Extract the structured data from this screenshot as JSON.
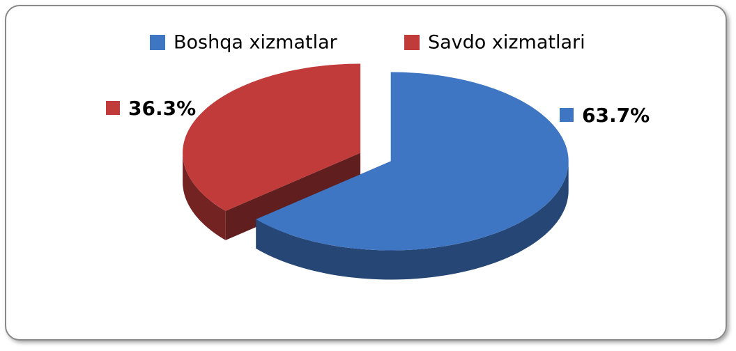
{
  "chart_data": {
    "type": "pie",
    "categories": [
      "Boshqa xizmatlar",
      "Savdo xizmatlari"
    ],
    "values": [
      63.7,
      36.3
    ],
    "value_labels": [
      "63.7%",
      "36.3%"
    ],
    "colors": [
      "#3f76c4",
      "#c23b3b"
    ],
    "legend": "top"
  }
}
